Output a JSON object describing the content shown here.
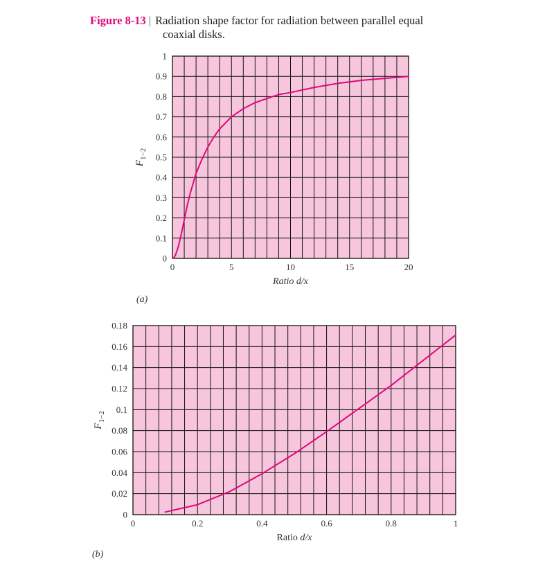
{
  "caption": {
    "figure_label": "Figure 8-13",
    "separator": "|",
    "text_line1": "Radiation shape factor for radiation between parallel equal",
    "text_line2": "coaxial disks."
  },
  "colors": {
    "plot_background": "#f7c6dd",
    "grid": "#111111",
    "curve": "#e0087a",
    "caption_accent": "#e0087a"
  },
  "chart_data": [
    {
      "panel_label": "(a)",
      "type": "line",
      "title": "",
      "xlabel": "Ratio d/x",
      "ylabel": "F1−2",
      "xlim": [
        0,
        20
      ],
      "ylim": [
        0,
        1
      ],
      "x_ticks": [
        0,
        5,
        10,
        15,
        20
      ],
      "y_ticks": [
        0,
        0.1,
        0.2,
        0.3,
        0.4,
        0.5,
        0.6,
        0.7,
        0.8,
        0.9,
        1
      ],
      "grid": true,
      "grid_x_step": 1,
      "grid_y_step": 0.1,
      "series": [
        {
          "x": [
            0.1,
            0.25,
            0.5,
            0.75,
            1,
            1.25,
            1.5,
            2,
            2.5,
            3,
            3.5,
            4,
            5,
            6,
            7,
            8,
            9,
            10,
            12,
            14,
            16,
            18,
            20
          ],
          "y": [
            0.002,
            0.015,
            0.058,
            0.12,
            0.19,
            0.26,
            0.32,
            0.42,
            0.49,
            0.55,
            0.6,
            0.64,
            0.7,
            0.74,
            0.77,
            0.79,
            0.81,
            0.82,
            0.845,
            0.865,
            0.88,
            0.89,
            0.9
          ]
        }
      ]
    },
    {
      "panel_label": "(b)",
      "type": "line",
      "title": "",
      "xlabel": "Ratio d/x",
      "ylabel": "F1−2",
      "xlim": [
        0,
        1
      ],
      "ylim": [
        0,
        0.18
      ],
      "x_ticks": [
        0,
        0.2,
        0.4,
        0.6,
        0.8,
        1
      ],
      "y_ticks": [
        0,
        0.02,
        0.04,
        0.06,
        0.08,
        0.1,
        0.12,
        0.14,
        0.16,
        0.18
      ],
      "grid": true,
      "grid_x_step": 0.04,
      "grid_y_step": 0.02,
      "series": [
        {
          "x": [
            0.1,
            0.2,
            0.3,
            0.4,
            0.5,
            0.6,
            0.7,
            0.8,
            0.9,
            1.0
          ],
          "y": [
            0.0025,
            0.0095,
            0.022,
            0.039,
            0.058,
            0.079,
            0.101,
            0.123,
            0.147,
            0.171
          ]
        }
      ]
    }
  ]
}
